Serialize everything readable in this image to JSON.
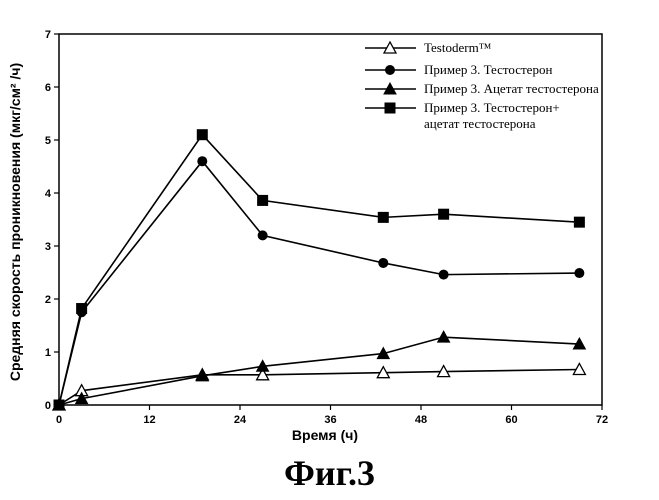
{
  "chart_data": {
    "type": "line",
    "title": "",
    "xlabel": "Время (ч)",
    "ylabel": "Средняя скорость проникновения (мкг/см² /ч)",
    "xlim": [
      0,
      72
    ],
    "ylim": [
      0,
      7
    ],
    "xticks": [
      0,
      12,
      24,
      36,
      48,
      60,
      72
    ],
    "yticks": [
      0,
      1,
      2,
      3,
      4,
      5,
      6,
      7
    ],
    "grid": false,
    "legend_position": "top-right",
    "series": [
      {
        "name": "Testoderm™",
        "marker": "open-triangle",
        "x": [
          0,
          3,
          19,
          27,
          43,
          51,
          69
        ],
        "y": [
          0.0,
          0.27,
          0.57,
          0.57,
          0.61,
          0.63,
          0.67
        ]
      },
      {
        "name": "Пример 3. Тестостерон",
        "marker": "filled-circle",
        "x": [
          0,
          3,
          19,
          27,
          43,
          51,
          69
        ],
        "y": [
          0.0,
          1.75,
          4.6,
          3.2,
          2.68,
          2.46,
          2.49
        ]
      },
      {
        "name": "Пример 3. Ацетат тестостерона",
        "marker": "filled-triangle",
        "x": [
          0,
          3,
          19,
          27,
          43,
          51,
          69
        ],
        "y": [
          0.0,
          0.12,
          0.55,
          0.73,
          0.97,
          1.28,
          1.15
        ]
      },
      {
        "name": "Пример 3. Тестостерон+ ацетат тестостерона",
        "name_lines": [
          "Пример 3. Тестостерон+",
          "ацетат тестостерона"
        ],
        "marker": "filled-square",
        "x": [
          0,
          3,
          19,
          27,
          43,
          51,
          69
        ],
        "y": [
          0.0,
          1.82,
          5.1,
          3.86,
          3.54,
          3.6,
          3.45
        ]
      }
    ]
  },
  "figure_caption": "Фиг.3"
}
